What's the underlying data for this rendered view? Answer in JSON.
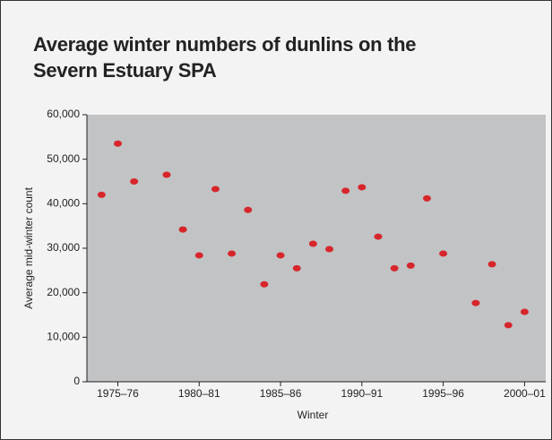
{
  "chart_data": {
    "type": "scatter",
    "title": "Average winter numbers of dunlins on the Severn Estuary SPA",
    "x_label": "Winter",
    "y_label": "Average mid-winter count",
    "x": [
      1974,
      1975,
      1976,
      1978,
      1979,
      1980,
      1981,
      1982,
      1983,
      1984,
      1985,
      1986,
      1987,
      1988,
      1989,
      1990,
      1991,
      1992,
      1993,
      1994,
      1995,
      1997,
      1998,
      1999,
      2000
    ],
    "values": [
      42000,
      53500,
      45000,
      46500,
      34200,
      28400,
      43300,
      28800,
      38600,
      21900,
      28400,
      25500,
      31000,
      29800,
      42900,
      43700,
      32600,
      25500,
      26100,
      41200,
      28800,
      17700,
      26400,
      12700,
      15700
    ],
    "color": "#d7262b",
    "xlim": [
      1973.1,
      2001.3
    ],
    "xticks": [
      {
        "value": 1975,
        "label": "1975–76"
      },
      {
        "value": 1980,
        "label": "1980–81"
      },
      {
        "value": 1985,
        "label": "1985–86"
      },
      {
        "value": 1990,
        "label": "1990–91"
      },
      {
        "value": 1995,
        "label": "1995–96"
      },
      {
        "value": 2000,
        "label": "2000–01"
      }
    ],
    "ylim": [
      0,
      60000
    ],
    "yticks": [
      {
        "value": 0,
        "label": "0"
      },
      {
        "value": 10000,
        "label": "10,000"
      },
      {
        "value": 20000,
        "label": "20,000"
      },
      {
        "value": 30000,
        "label": "30,000"
      },
      {
        "value": 40000,
        "label": "40,000"
      },
      {
        "value": 50000,
        "label": "50,000"
      },
      {
        "value": 60000,
        "label": "60,000"
      }
    ],
    "plot_background": "#c1c3c5"
  }
}
